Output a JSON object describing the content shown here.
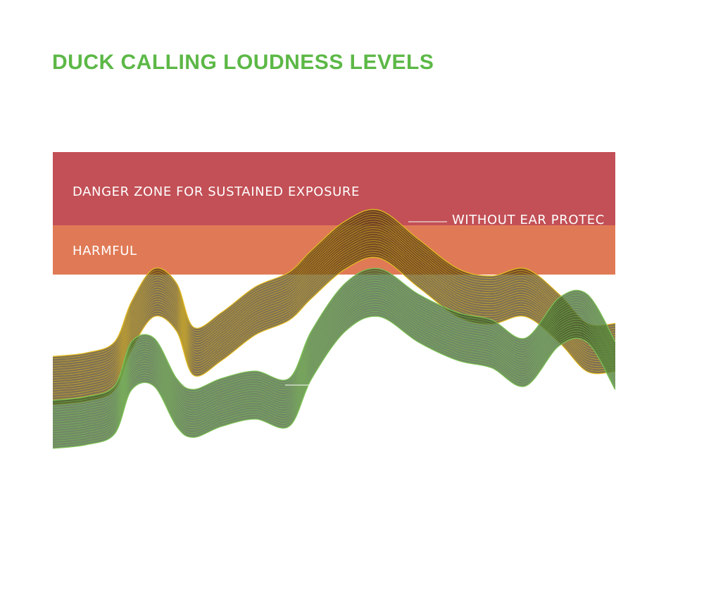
{
  "title": "DUCK CALLING LOUDNESS LEVELS",
  "colors": {
    "title": "#5cb846",
    "danger_zone": "#c25056",
    "harmful_zone": "#e07a56",
    "without_protection_stroke": "#e0b820",
    "without_protection_fill": "#4e3a12",
    "with_protection_stroke": "#7cc054",
    "with_protection_fill": "#3a5a2c"
  },
  "chart_data": {
    "type": "area",
    "title": "DUCK CALLING LOUDNESS LEVELS",
    "zones": [
      {
        "label": "DANGER ZONE FOR SUSTAINED EXPOSURE",
        "color": "#c25056"
      },
      {
        "label": "HARMFUL",
        "color": "#e07a56"
      }
    ],
    "series": [
      {
        "name": "WITHOUT EAR PROTEC",
        "color": "#e0b820",
        "x": [
          0,
          0.06,
          0.11,
          0.14,
          0.18,
          0.22,
          0.25,
          0.3,
          0.36,
          0.42,
          0.46,
          0.52,
          0.58,
          0.65,
          0.72,
          0.78,
          0.84,
          0.9,
          0.95,
          1.0
        ],
        "values": [
          0.18,
          0.19,
          0.22,
          0.33,
          0.42,
          0.38,
          0.26,
          0.3,
          0.37,
          0.41,
          0.47,
          0.55,
          0.58,
          0.5,
          0.42,
          0.4,
          0.42,
          0.35,
          0.27,
          0.27
        ]
      },
      {
        "name": "",
        "color": "#7cc054",
        "x": [
          0,
          0.06,
          0.11,
          0.14,
          0.18,
          0.22,
          0.25,
          0.3,
          0.36,
          0.42,
          0.46,
          0.52,
          0.58,
          0.65,
          0.72,
          0.78,
          0.84,
          0.9,
          0.95,
          1.0
        ],
        "values": [
          0.06,
          0.07,
          0.1,
          0.22,
          0.23,
          0.12,
          0.09,
          0.12,
          0.14,
          0.12,
          0.25,
          0.38,
          0.42,
          0.35,
          0.3,
          0.28,
          0.23,
          0.34,
          0.35,
          0.22
        ]
      }
    ]
  }
}
